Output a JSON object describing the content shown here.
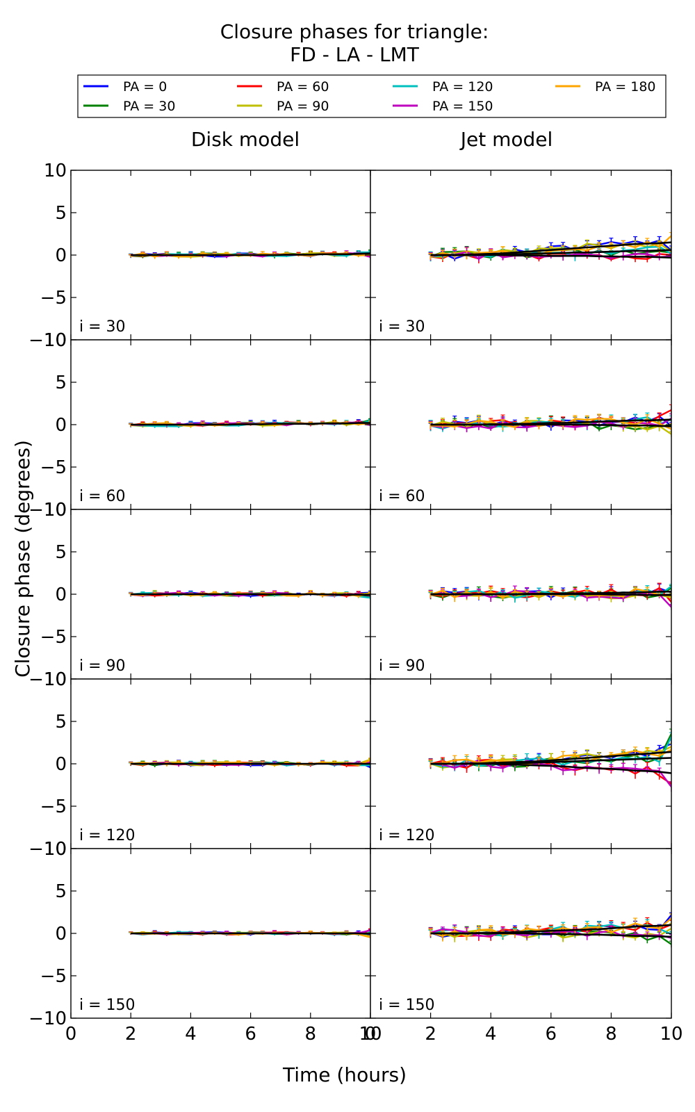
{
  "chart_data": {
    "type": "line",
    "title_lines": [
      "Closure phases for triangle:",
      "FD - LA - LMT"
    ],
    "xlabel": "Time (hours)",
    "ylabel": "Closure phase (degrees)",
    "xlim": [
      0,
      10
    ],
    "ylim": [
      -10,
      10
    ],
    "x_ticks": [
      "0",
      "2",
      "4",
      "6",
      "8",
      "10"
    ],
    "y_ticks": [
      "10",
      "5",
      "0",
      "−5",
      "−10"
    ],
    "grid": false,
    "legend_placement": "top-center",
    "columns": [
      "Disk model",
      "Jet model"
    ],
    "rows": [
      "i = 30",
      "i = 60",
      "i = 90",
      "i = 120",
      "i = 150"
    ],
    "series": [
      {
        "name": "PA = 0",
        "color": "#0000ff"
      },
      {
        "name": "PA = 30",
        "color": "#008000"
      },
      {
        "name": "PA = 60",
        "color": "#ff0000"
      },
      {
        "name": "PA = 90",
        "color": "#bfbf00"
      },
      {
        "name": "PA = 120",
        "color": "#00bfbf"
      },
      {
        "name": "PA = 150",
        "color": "#bf00bf"
      },
      {
        "name": "PA = 180",
        "color": "#ffa500"
      }
    ],
    "time": [
      2.0,
      2.4,
      2.8,
      3.2,
      3.6,
      4.0,
      4.4,
      4.8,
      5.2,
      5.6,
      6.0,
      6.4,
      6.8,
      7.2,
      7.6,
      8.0,
      8.4,
      8.8,
      9.2,
      9.6,
      10.0
    ],
    "panels": [
      {
        "model": "Disk model",
        "inclination": "i = 30",
        "model_curves": [
          [
            0.0,
            0.0,
            0.0,
            0.0,
            0.0,
            0.0,
            0.0,
            0.0,
            0.0,
            0.0,
            0.0,
            0.0,
            0.0,
            0.05,
            0.05,
            0.05,
            0.1,
            0.1,
            0.1,
            0.15,
            0.2
          ]
        ],
        "amp": 0.2,
        "edge": 0.4
      },
      {
        "model": "Jet model",
        "inclination": "i = 30",
        "model_curves": [
          [
            0.0,
            0.0,
            0.0,
            0.05,
            0.1,
            0.15,
            0.2,
            0.3,
            0.4,
            0.5,
            0.6,
            0.7,
            0.8,
            0.9,
            1.0,
            1.1,
            1.2,
            1.3,
            1.35,
            1.4,
            1.5
          ],
          [
            0.0,
            0.0,
            0.0,
            0.0,
            0.05,
            0.05,
            0.1,
            0.1,
            0.15,
            0.2,
            0.2,
            0.25,
            0.3,
            0.3,
            0.35,
            0.4,
            0.45,
            0.5,
            0.5,
            0.55,
            0.6
          ],
          [
            0.0,
            0.0,
            0.0,
            0.0,
            0.0,
            0.0,
            0.0,
            -0.05,
            -0.05,
            -0.05,
            -0.1,
            -0.1,
            -0.1,
            -0.1,
            -0.15,
            -0.15,
            -0.2,
            -0.2,
            -0.2,
            -0.25,
            -0.3
          ]
        ],
        "amp": 0.45,
        "edge": 1.0
      },
      {
        "model": "Disk model",
        "inclination": "i = 60",
        "model_curves": [
          [
            0.0,
            0.0,
            0.0,
            0.0,
            0.0,
            0.0,
            0.0,
            0.0,
            0.0,
            0.05,
            0.05,
            0.05,
            0.1,
            0.1,
            0.1,
            0.1,
            0.15,
            0.15,
            0.15,
            0.2,
            0.2
          ]
        ],
        "amp": 0.2,
        "edge": 0.4
      },
      {
        "model": "Jet model",
        "inclination": "i = 60",
        "model_curves": [
          [
            0.0,
            0.0,
            0.0,
            0.0,
            0.0,
            0.05,
            0.05,
            0.1,
            0.1,
            0.15,
            0.2,
            0.2,
            0.25,
            0.3,
            0.35,
            0.4,
            0.45,
            0.5,
            0.5,
            0.55,
            0.6
          ],
          [
            0.0,
            0.0,
            0.0,
            0.0,
            0.0,
            0.0,
            0.0,
            0.0,
            0.0,
            0.0,
            0.0,
            0.0,
            0.0,
            0.0,
            -0.05,
            -0.05,
            -0.1,
            -0.1,
            -0.1,
            -0.15,
            -0.2
          ]
        ],
        "amp": 0.5,
        "edge": 1.5
      },
      {
        "model": "Disk model",
        "inclination": "i = 90",
        "model_curves": [
          [
            0.0,
            0.0,
            0.0,
            0.0,
            0.0,
            0.0,
            0.0,
            0.0,
            0.0,
            0.0,
            0.0,
            0.0,
            0.0,
            0.0,
            0.0,
            0.0,
            0.0,
            -0.05,
            -0.05,
            -0.05,
            -0.1
          ]
        ],
        "amp": 0.2,
        "edge": 0.4
      },
      {
        "model": "Jet model",
        "inclination": "i = 90",
        "model_curves": [
          [
            0.0,
            0.0,
            0.0,
            0.0,
            0.0,
            0.0,
            0.0,
            0.0,
            0.05,
            0.05,
            0.05,
            0.1,
            0.1,
            0.1,
            0.15,
            0.15,
            0.2,
            0.2,
            0.25,
            0.3,
            0.3
          ],
          [
            0.0,
            0.0,
            0.0,
            0.0,
            0.0,
            0.0,
            0.0,
            0.0,
            0.0,
            0.0,
            0.0,
            0.0,
            0.0,
            0.0,
            0.0,
            -0.05,
            -0.05,
            -0.05,
            -0.1,
            -0.1,
            -0.1
          ]
        ],
        "amp": 0.45,
        "edge": 1.5
      },
      {
        "model": "Disk model",
        "inclination": "i = 120",
        "model_curves": [
          [
            0.0,
            0.0,
            0.0,
            0.0,
            0.0,
            0.0,
            0.0,
            0.0,
            0.0,
            0.0,
            0.0,
            0.0,
            0.0,
            0.0,
            0.0,
            0.0,
            0.0,
            0.0,
            0.0,
            0.0,
            0.0
          ]
        ],
        "amp": 0.2,
        "edge": 0.5
      },
      {
        "model": "Jet model",
        "inclination": "i = 120",
        "model_curves": [
          [
            0.0,
            0.0,
            0.0,
            0.05,
            0.05,
            0.1,
            0.15,
            0.2,
            0.25,
            0.3,
            0.4,
            0.5,
            0.6,
            0.7,
            0.8,
            0.9,
            1.0,
            1.1,
            1.2,
            1.3,
            1.4
          ],
          [
            0.0,
            0.0,
            0.0,
            0.0,
            0.0,
            0.0,
            0.05,
            0.1,
            0.1,
            0.15,
            0.2,
            0.25,
            0.3,
            0.35,
            0.4,
            0.45,
            0.5,
            0.55,
            0.6,
            0.65,
            0.7
          ],
          [
            0.0,
            0.0,
            0.0,
            0.0,
            0.0,
            0.0,
            -0.05,
            -0.1,
            -0.15,
            -0.2,
            -0.25,
            -0.3,
            -0.4,
            -0.5,
            -0.55,
            -0.6,
            -0.7,
            -0.8,
            -0.85,
            -0.95,
            -1.1
          ]
        ],
        "amp": 0.5,
        "edge": 3.0
      },
      {
        "model": "Disk model",
        "inclination": "i = 150",
        "model_curves": [
          [
            0.0,
            0.0,
            0.0,
            0.0,
            0.0,
            0.0,
            0.0,
            0.0,
            0.0,
            0.0,
            0.0,
            0.0,
            0.0,
            0.0,
            0.0,
            0.0,
            0.0,
            0.0,
            0.0,
            0.0,
            -0.05
          ]
        ],
        "amp": 0.15,
        "edge": 0.6
      },
      {
        "model": "Jet model",
        "inclination": "i = 150",
        "model_curves": [
          [
            0.0,
            0.0,
            0.0,
            0.0,
            0.05,
            0.05,
            0.1,
            0.15,
            0.2,
            0.25,
            0.3,
            0.35,
            0.4,
            0.45,
            0.5,
            0.6,
            0.7,
            0.8,
            0.85,
            0.9,
            1.0
          ],
          [
            0.0,
            0.0,
            0.0,
            0.0,
            0.0,
            0.0,
            0.0,
            0.0,
            0.0,
            -0.05,
            -0.05,
            -0.1,
            -0.1,
            -0.15,
            -0.15,
            -0.2,
            -0.25,
            -0.3,
            -0.3,
            -0.35,
            -0.4
          ]
        ],
        "amp": 0.5,
        "edge": 1.5
      }
    ]
  }
}
